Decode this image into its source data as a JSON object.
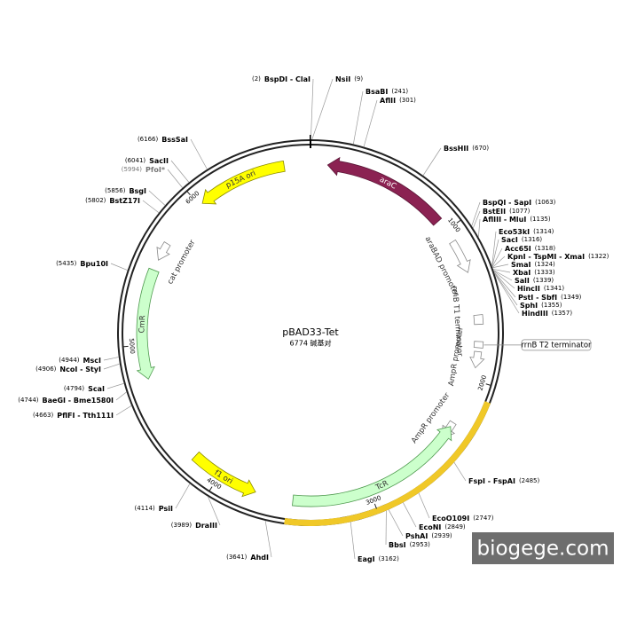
{
  "plasmid": {
    "name": "pBAD33-Tet",
    "length": 6774,
    "length_label": "6774 碱基对",
    "ticks": [
      1000,
      2000,
      3000,
      4000,
      5000,
      6000
    ],
    "highlight": {
      "start": 2097,
      "end": 3535,
      "color": "#f0c828"
    },
    "features": [
      {
        "label": "araC",
        "start": 110,
        "end": 920,
        "direction": "reverse",
        "shape": "arrow",
        "color": "#8b2252",
        "label_color": "#ffffff"
      },
      {
        "label": "araBAD promoter",
        "start": 1080,
        "end": 1300,
        "direction": "forward",
        "shape": "arrow-outline",
        "color": "#ffffff"
      },
      {
        "label": "rrnB T1 terminator",
        "start": 1580,
        "end": 1640,
        "shape": "box",
        "color": "#ffffff"
      },
      {
        "label": "rrnB T2 terminator",
        "start": 1750,
        "end": 1790,
        "shape": "box",
        "color": "#ffffff",
        "label_style": "callout"
      },
      {
        "label": "AmpR promoter",
        "start": 1815,
        "end": 1920,
        "direction": "forward",
        "shape": "arrow-outline",
        "color": "#ffffff"
      },
      {
        "label": "AmpR promoter",
        "start": 2300,
        "end": 2420,
        "direction": "forward",
        "shape": "arrow-outline",
        "color": "#ffffff"
      },
      {
        "label": "TcR",
        "start": 2330,
        "end": 3500,
        "direction": "reverse",
        "shape": "arrow",
        "color": "#ccffcc"
      },
      {
        "label": "f1 ori",
        "start": 3745,
        "end": 4197,
        "direction": "reverse",
        "shape": "arrow",
        "color": "#ffff00"
      },
      {
        "label": "CmR",
        "start": 4780,
        "end": 5490,
        "direction": "reverse",
        "shape": "arrow",
        "color": "#ccffcc"
      },
      {
        "label": "cat promoter",
        "start": 5560,
        "end": 5680,
        "direction": "reverse",
        "shape": "arrow-outline",
        "color": "#ffffff"
      },
      {
        "label": "p15A ori",
        "start": 6023,
        "end": 6605,
        "direction": "reverse",
        "shape": "arrow",
        "color": "#ffff00"
      }
    ],
    "sites": [
      {
        "name": "BspDI - ClaI",
        "position": 2,
        "position_label": "(2)"
      },
      {
        "name": "NsiI",
        "position": 9,
        "position_label": "(9)"
      },
      {
        "name": "BsaBI",
        "position": 241,
        "position_label": "(241)"
      },
      {
        "name": "AflII",
        "position": 301,
        "position_label": "(301)"
      },
      {
        "name": "BssHII",
        "position": 670,
        "position_label": "(670)"
      },
      {
        "name": "BspQI - SapI",
        "position": 1063,
        "position_label": "(1063)"
      },
      {
        "name": "BstEII",
        "position": 1077,
        "position_label": "(1077)"
      },
      {
        "name": "AflIII - MluI",
        "position": 1135,
        "position_label": "(1135)"
      },
      {
        "name": "Eco53kI",
        "position": 1314,
        "position_label": "(1314)"
      },
      {
        "name": "SacI",
        "position": 1316,
        "position_label": "(1316)"
      },
      {
        "name": "Acc65I",
        "position": 1318,
        "position_label": "(1318)"
      },
      {
        "name": "KpnI - TspMI - XmaI",
        "position": 1322,
        "position_label": "(1322)"
      },
      {
        "name": "SmaI",
        "position": 1324,
        "position_label": "(1324)"
      },
      {
        "name": "XbaI",
        "position": 1333,
        "position_label": "(1333)"
      },
      {
        "name": "SalI",
        "position": 1339,
        "position_label": "(1339)"
      },
      {
        "name": "HincII",
        "position": 1341,
        "position_label": "(1341)"
      },
      {
        "name": "PstI - SbfI",
        "position": 1349,
        "position_label": "(1349)"
      },
      {
        "name": "SphI",
        "position": 1355,
        "position_label": "(1355)"
      },
      {
        "name": "HindIII",
        "position": 1357,
        "position_label": "(1357)"
      },
      {
        "name": "FspI - FspAI",
        "position": 2485,
        "position_label": "(2485)"
      },
      {
        "name": "EcoO109I",
        "position": 2747,
        "position_label": "(2747)"
      },
      {
        "name": "EcoNI",
        "position": 2849,
        "position_label": "(2849)"
      },
      {
        "name": "PshAI",
        "position": 2939,
        "position_label": "(2939)"
      },
      {
        "name": "BbsI",
        "position": 2953,
        "position_label": "(2953)"
      },
      {
        "name": "EagI",
        "position": 3162,
        "position_label": "(3162)"
      },
      {
        "name": "AhdI",
        "position": 3641,
        "position_label": "(3641)"
      },
      {
        "name": "DraIII",
        "position": 3989,
        "position_label": "(3989)"
      },
      {
        "name": "PsiI",
        "position": 4114,
        "position_label": "(4114)"
      },
      {
        "name": "PflFI - Tth111I",
        "position": 4663,
        "position_label": "(4663)"
      },
      {
        "name": "BaeGI - Bme1580I",
        "position": 4744,
        "position_label": "(4744)"
      },
      {
        "name": "ScaI",
        "position": 4794,
        "position_label": "(4794)"
      },
      {
        "name": "NcoI - StyI",
        "position": 4906,
        "position_label": "(4906)"
      },
      {
        "name": "MscI",
        "position": 4944,
        "position_label": "(4944)"
      },
      {
        "name": "Bpu10I",
        "position": 5435,
        "position_label": "(5435)"
      },
      {
        "name": "BstZ17I",
        "position": 5802,
        "position_label": "(5802)"
      },
      {
        "name": "BsgI",
        "position": 5856,
        "position_label": "(5856)"
      },
      {
        "name": "PfoI*",
        "position": 5994,
        "position_label": "(5994)",
        "color": "#777777"
      },
      {
        "name": "SacII",
        "position": 6041,
        "position_label": "(6041)"
      },
      {
        "name": "BssSaI",
        "position": 6166,
        "position_label": "(6166)"
      }
    ]
  },
  "watermark": "biogege.com"
}
